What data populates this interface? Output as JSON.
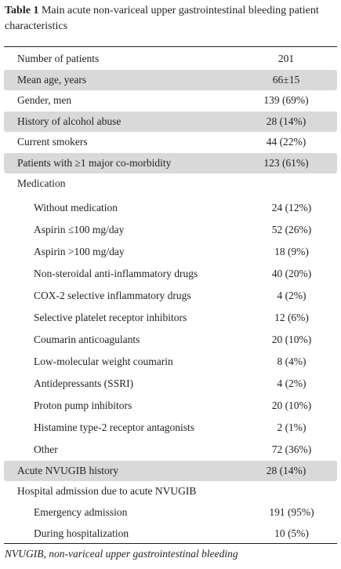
{
  "title": {
    "label": "Table 1",
    "text": "Main acute non-variceal upper gastrointestinal bleeding patient characteristics"
  },
  "table": {
    "rows": [
      {
        "label": "Number of patients",
        "value": "201"
      },
      {
        "label": "Mean age, years",
        "value": "66±15",
        "shaded": true
      },
      {
        "label": "Gender, men",
        "value": "139 (69%)"
      },
      {
        "label": "History of alcohol abuse",
        "value": "28 (14%)",
        "shaded": true
      },
      {
        "label": "Current smokers",
        "value": "44 (22%)"
      },
      {
        "label": "Patients with ≥1 major co-morbidity",
        "value": "123 (61%)",
        "shaded": true
      },
      {
        "label": "Medication",
        "items": [
          {
            "label": "Without medication",
            "value": "24 (12%)"
          },
          {
            "label": "Aspirin ≤100 mg/day",
            "value": "52 (26%)"
          },
          {
            "label": "Aspirin >100 mg/day",
            "value": "18 (9%)"
          },
          {
            "label": "Non-steroidal anti-inflammatory drugs",
            "value": "40 (20%)"
          },
          {
            "label": "COX-2 selective inflammatory drugs",
            "value": "4 (2%)"
          },
          {
            "label": "Selective platelet receptor inhibitors",
            "value": "12 (6%)"
          },
          {
            "label": "Coumarin anticoagulants",
            "value": "20 (10%)"
          },
          {
            "label": "Low-molecular weight coumarin",
            "value": "8 (4%)"
          },
          {
            "label": "Antidepressants (SSRI)",
            "value": "4 (2%)"
          },
          {
            "label": "Proton pump inhibitors",
            "value": "20 (10%)"
          },
          {
            "label": "Histamine type-2 receptor antagonists",
            "value": "2 (1%)"
          },
          {
            "label": "Other",
            "value": "72 (36%)"
          }
        ]
      },
      {
        "label": "Acute NVUGIB history",
        "value": "28 (14%)",
        "shaded": true
      },
      {
        "label": "Hospital admission due to acute NVUGIB",
        "items": [
          {
            "label": "Emergency admission",
            "value": "191 (95%)"
          },
          {
            "label": "During hospitalization",
            "value": "10 (5%)"
          }
        ]
      }
    ]
  },
  "footnote": "NVUGIB, non-variceal upper gastrointestinal bleeding"
}
